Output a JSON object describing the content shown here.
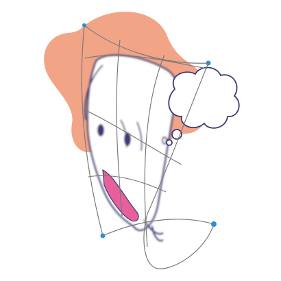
{
  "editor": {
    "tool": "warp-transform",
    "layer": "dog-illustration",
    "handle_count": 4
  },
  "colors": {
    "canvas": "#ffffff",
    "blob": "#f2a487",
    "outline": "#3c3a78",
    "tongue": "#e7609b",
    "mesh": "#7a7a7a",
    "handle": "#2f8fd1"
  },
  "icons": {
    "handles": [
      "warp-handle-top-left",
      "warp-handle-top-right",
      "warp-handle-bottom-right",
      "warp-handle-bottom-left"
    ]
  }
}
